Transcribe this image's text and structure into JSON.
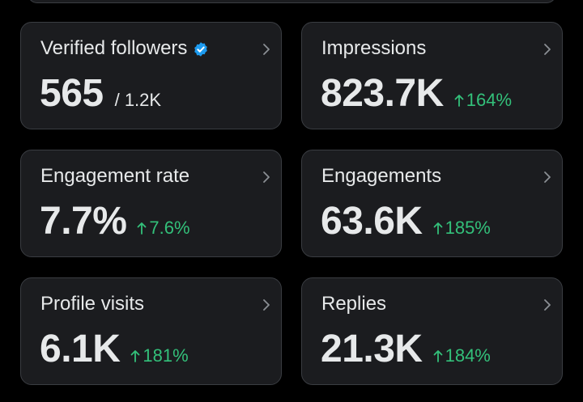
{
  "colors": {
    "background": "#000000",
    "card_background": "#1b1c1f",
    "card_border": "#3a3d42",
    "text": "#e7e9ea",
    "positive_delta": "#33c07a",
    "verified_badge": "#1d9bf0",
    "chevron": "#8b8f94"
  },
  "icons": {
    "verified": "verified-badge-icon",
    "chevron": "chevron-right-icon",
    "delta": "arrow-up-icon"
  },
  "cards": {
    "verified_followers": {
      "label": "Verified followers",
      "value": "565",
      "sub_value": "/ 1.2K"
    },
    "impressions": {
      "label": "Impressions",
      "value": "823.7K",
      "delta": "164%"
    },
    "engagement_rate": {
      "label": "Engagement rate",
      "value": "7.7%",
      "delta": "7.6%"
    },
    "engagements": {
      "label": "Engagements",
      "value": "63.6K",
      "delta": "185%"
    },
    "profile_visits": {
      "label": "Profile visits",
      "value": "6.1K",
      "delta": "181%"
    },
    "replies": {
      "label": "Replies",
      "value": "21.3K",
      "delta": "184%"
    }
  }
}
